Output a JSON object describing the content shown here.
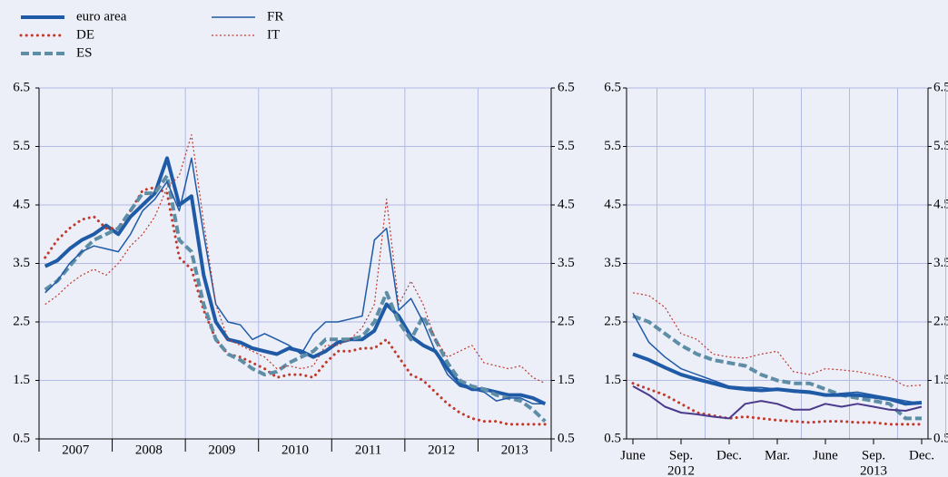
{
  "chart_data": [
    {
      "type": "line",
      "year_labels": [
        "2007",
        "2008",
        "2009",
        "2010",
        "2011",
        "2012",
        "2013"
      ],
      "ylim": [
        0.5,
        6.5
      ],
      "yticks": [
        0.5,
        1.5,
        2.5,
        3.5,
        4.5,
        5.5,
        6.5
      ],
      "grid": true,
      "series": [
        {
          "name": "euro area",
          "color": "#1f5aa6",
          "style": "thick",
          "values": [
            3.45,
            3.55,
            3.75,
            3.9,
            4.0,
            4.15,
            4.0,
            4.3,
            4.5,
            4.7,
            5.3,
            4.5,
            4.65,
            3.3,
            2.5,
            2.2,
            2.15,
            2.05,
            2.0,
            1.95,
            2.05,
            2.0,
            1.9,
            2.0,
            2.15,
            2.2,
            2.2,
            2.35,
            2.8,
            2.6,
            2.25,
            2.1,
            2.0,
            1.7,
            1.45,
            1.35,
            1.35,
            1.3,
            1.25,
            1.25,
            1.2,
            1.1
          ]
        },
        {
          "name": "DE",
          "color": "#c0392b",
          "style": "dotted",
          "values": [
            3.6,
            3.9,
            4.1,
            4.25,
            4.3,
            4.1,
            4.1,
            4.4,
            4.75,
            4.8,
            4.7,
            3.6,
            3.4,
            2.7,
            2.2,
            1.95,
            1.9,
            1.8,
            1.7,
            1.55,
            1.6,
            1.6,
            1.55,
            1.8,
            2.0,
            2.0,
            2.05,
            2.05,
            2.2,
            1.9,
            1.6,
            1.5,
            1.3,
            1.1,
            0.95,
            0.85,
            0.8,
            0.8,
            0.75,
            0.75,
            0.75,
            0.75
          ]
        },
        {
          "name": "ES",
          "color": "#5d8ea6",
          "style": "dashed",
          "values": [
            3.05,
            3.2,
            3.45,
            3.7,
            3.9,
            4.0,
            4.1,
            4.4,
            4.7,
            4.7,
            5.0,
            3.9,
            3.7,
            2.8,
            2.2,
            1.95,
            1.85,
            1.7,
            1.6,
            1.65,
            1.8,
            1.9,
            2.0,
            2.2,
            2.2,
            2.2,
            2.25,
            2.5,
            3.0,
            2.5,
            2.2,
            2.6,
            2.2,
            1.8,
            1.5,
            1.4,
            1.35,
            1.25,
            1.2,
            1.15,
            1.0,
            0.8
          ]
        },
        {
          "name": "FR",
          "color": "#1f5aa6",
          "style": "thin",
          "values": [
            3.0,
            3.2,
            3.5,
            3.7,
            3.8,
            3.75,
            3.7,
            4.0,
            4.4,
            4.6,
            4.9,
            4.4,
            5.3,
            4.0,
            2.8,
            2.5,
            2.45,
            2.2,
            2.3,
            2.2,
            2.1,
            1.95,
            2.3,
            2.5,
            2.5,
            2.55,
            2.6,
            3.9,
            4.1,
            2.7,
            2.9,
            2.5,
            2.0,
            1.6,
            1.4,
            1.35,
            1.3,
            1.15,
            1.2,
            1.2,
            1.1,
            1.1
          ]
        },
        {
          "name": "IT",
          "color": "#c0392b",
          "style": "fine-dotted",
          "values": [
            2.8,
            2.95,
            3.15,
            3.3,
            3.4,
            3.3,
            3.5,
            3.8,
            4.0,
            4.3,
            4.8,
            5.0,
            5.7,
            4.2,
            2.8,
            2.2,
            2.1,
            2.0,
            1.9,
            1.7,
            1.75,
            1.7,
            1.75,
            2.1,
            2.1,
            2.2,
            2.4,
            2.8,
            4.6,
            2.8,
            3.2,
            2.8,
            2.2,
            1.9,
            2.0,
            2.1,
            1.8,
            1.75,
            1.7,
            1.75,
            1.55,
            1.45
          ]
        }
      ]
    },
    {
      "type": "line",
      "categories": [
        "June",
        null,
        null,
        "Sep.",
        null,
        null,
        "Dec.",
        null,
        null,
        "Mar.",
        null,
        null,
        "June",
        null,
        null,
        "Sep.",
        null,
        null,
        "Dec."
      ],
      "year_labels": [
        "2012",
        "2013"
      ],
      "ylim": [
        0.5,
        6.5
      ],
      "yticks": [
        0.5,
        1.5,
        2.5,
        3.5,
        4.5,
        5.5,
        6.5
      ],
      "grid": true,
      "series": [
        {
          "color": "#c0392b",
          "style": "fine-dotted",
          "values": [
            3.0,
            2.95,
            2.75,
            2.3,
            2.2,
            1.95,
            1.9,
            1.88,
            1.95,
            2.0,
            1.65,
            1.6,
            1.7,
            1.68,
            1.65,
            1.6,
            1.55,
            1.4,
            1.42
          ]
        },
        {
          "color": "#5d8ea6",
          "style": "dashed",
          "values": [
            2.6,
            2.5,
            2.3,
            2.1,
            1.95,
            1.85,
            1.8,
            1.75,
            1.6,
            1.5,
            1.45,
            1.45,
            1.35,
            1.25,
            1.2,
            1.15,
            1.1,
            0.85,
            0.85
          ]
        },
        {
          "color": "#1f5aa6",
          "style": "thin",
          "values": [
            2.65,
            2.15,
            1.9,
            1.7,
            1.6,
            1.5,
            1.4,
            1.38,
            1.38,
            1.35,
            1.3,
            1.28,
            1.25,
            1.28,
            1.3,
            1.25,
            1.2,
            1.15,
            1.1
          ]
        },
        {
          "color": "#c0392b",
          "style": "dotted",
          "values": [
            1.45,
            1.35,
            1.25,
            1.1,
            0.95,
            0.9,
            0.85,
            0.88,
            0.85,
            0.82,
            0.8,
            0.78,
            0.8,
            0.8,
            0.78,
            0.78,
            0.75,
            0.75,
            0.75
          ]
        },
        {
          "color": "#4b3a8c",
          "style": "solid",
          "values": [
            1.4,
            1.25,
            1.05,
            0.95,
            0.92,
            0.88,
            0.85,
            1.1,
            1.15,
            1.1,
            1.0,
            1.0,
            1.1,
            1.05,
            1.1,
            1.05,
            1.0,
            0.98,
            1.05
          ]
        },
        {
          "color": "#1f5aa6",
          "style": "thick",
          "values": [
            1.95,
            1.85,
            1.72,
            1.6,
            1.52,
            1.45,
            1.38,
            1.35,
            1.33,
            1.35,
            1.32,
            1.3,
            1.25,
            1.25,
            1.25,
            1.22,
            1.18,
            1.1,
            1.12
          ]
        }
      ]
    }
  ]
}
